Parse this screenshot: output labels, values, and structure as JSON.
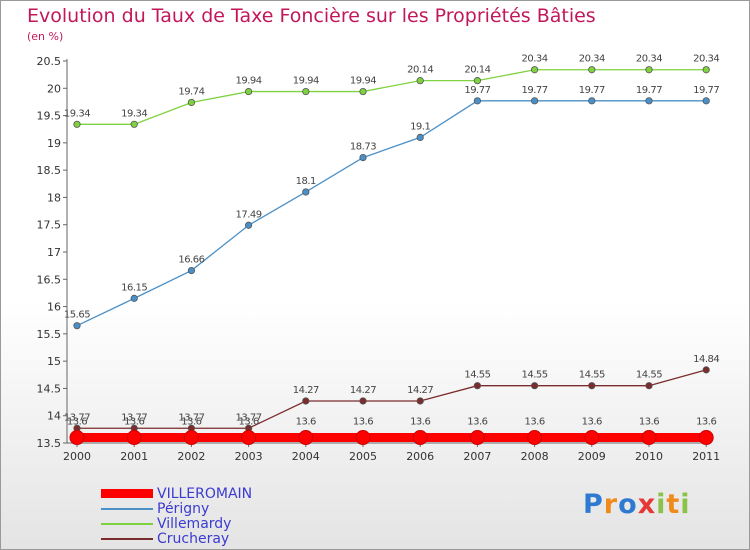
{
  "title": "Evolution du Taux de Taxe Foncière sur les Propriétés Bâties",
  "unit_label": "(en %)",
  "logo": {
    "letters": [
      "P",
      "r",
      "o",
      "x",
      "i",
      "t",
      "i"
    ],
    "colors": [
      "#2e7ad1",
      "#f08a1c",
      "#2e7ad1",
      "#e53935",
      "#8bc34a",
      "#f08a1c",
      "#8bc34a"
    ]
  },
  "chart_data": {
    "type": "line",
    "x": [
      "2000",
      "2001",
      "2002",
      "2003",
      "2004",
      "2005",
      "2006",
      "2007",
      "2008",
      "2009",
      "2010",
      "2011"
    ],
    "y_ticks": [
      "13.5",
      "14",
      "14.5",
      "15",
      "15.5",
      "16",
      "16.5",
      "17",
      "17.5",
      "18",
      "18.5",
      "19",
      "19.5",
      "20",
      "20.5"
    ],
    "ylim": [
      13.5,
      20.5
    ],
    "grid": false,
    "legend_position": "bottom-left",
    "series": [
      {
        "name": "VILLEROMAIN",
        "color": "#ff0000",
        "values": [
          13.6,
          13.6,
          13.6,
          13.6,
          13.6,
          13.6,
          13.6,
          13.6,
          13.6,
          13.6,
          13.6,
          13.6
        ],
        "labels": [
          "13.6",
          "13.6",
          "13.6",
          "13.6",
          "13.6",
          "13.6",
          "13.6",
          "13.6",
          "13.6",
          "13.6",
          "13.6",
          "13.6"
        ]
      },
      {
        "name": "Périgny",
        "color": "#4a90c8",
        "values": [
          15.65,
          16.15,
          16.66,
          17.49,
          18.1,
          18.73,
          19.1,
          19.77,
          19.77,
          19.77,
          19.77,
          19.77
        ],
        "labels": [
          "15.65",
          "16.15",
          "16.66",
          "17.49",
          "18.1",
          "18.73",
          "19.1",
          "19.77",
          "19.77",
          "19.77",
          "19.77",
          "19.77"
        ]
      },
      {
        "name": "Villemardy",
        "color": "#7fd23f",
        "values": [
          19.34,
          19.34,
          19.74,
          19.94,
          19.94,
          19.94,
          20.14,
          20.14,
          20.34,
          20.34,
          20.34,
          20.34
        ],
        "labels": [
          "19.34",
          "19.34",
          "19.74",
          "19.94",
          "19.94",
          "19.94",
          "20.14",
          "20.14",
          "20.34",
          "20.34",
          "20.34",
          "20.34"
        ]
      },
      {
        "name": "Crucheray",
        "color": "#7b2d2d",
        "values": [
          13.77,
          13.77,
          13.77,
          13.77,
          14.27,
          14.27,
          14.27,
          14.55,
          14.55,
          14.55,
          14.55,
          14.84
        ],
        "labels": [
          "13.77",
          "13.77",
          "13.77",
          "13.77",
          "14.27",
          "14.27",
          "14.27",
          "14.55",
          "14.55",
          "14.55",
          "14.55",
          "14.84"
        ]
      }
    ]
  }
}
